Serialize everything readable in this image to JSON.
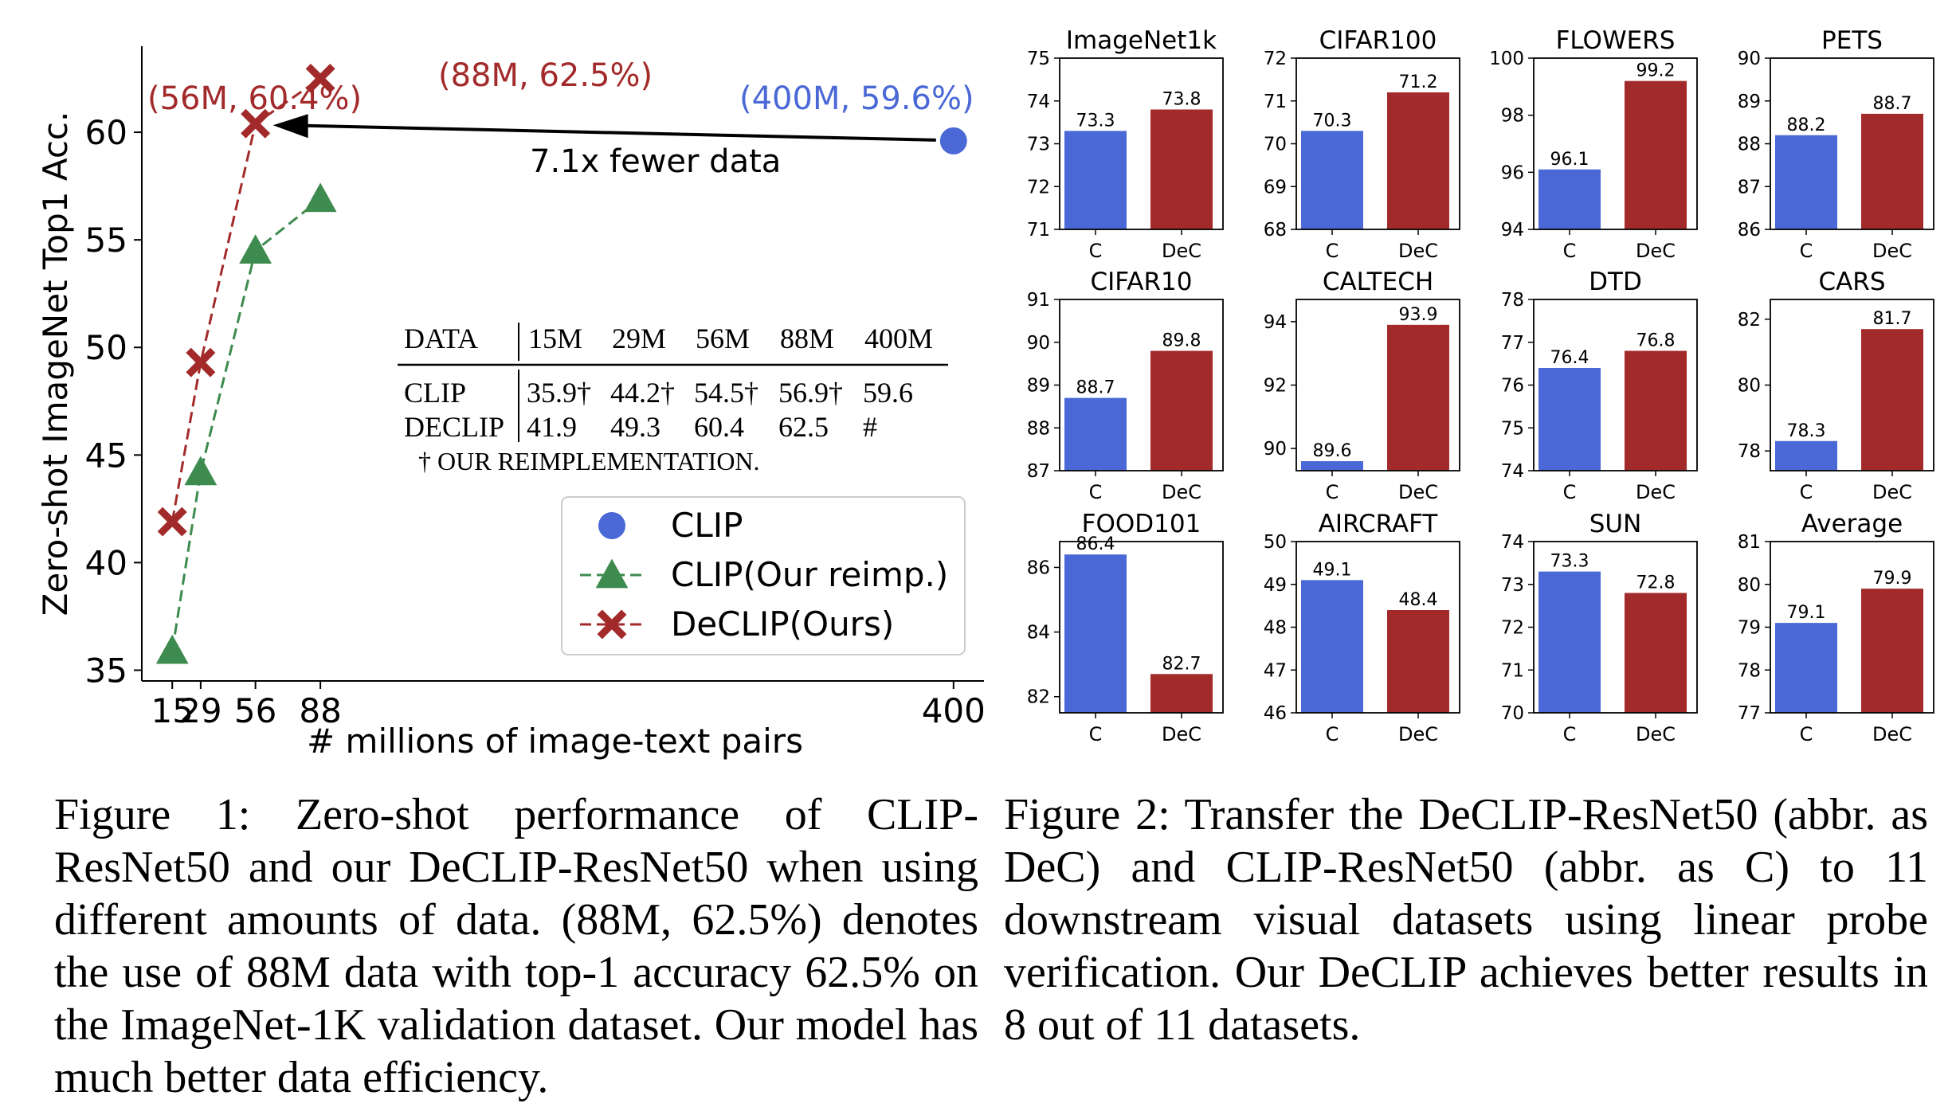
{
  "figure1": {
    "chart_data": {
      "type": "line",
      "ylabel": "Zero-shot ImageNet Top1 Acc.",
      "xlabel": "# millions of image-text pairs",
      "xlim": [
        0,
        415
      ],
      "ylim": [
        34.5,
        64
      ],
      "xticks": [
        15,
        29,
        56,
        88,
        400
      ],
      "yticks": [
        35,
        40,
        45,
        50,
        55,
        60
      ],
      "series": [
        {
          "name": "CLIP",
          "color": "#4a68d6",
          "marker": "circle",
          "line": false,
          "x": [
            400
          ],
          "y": [
            59.6
          ]
        },
        {
          "name": "CLIP(Our reimp.)",
          "color": "#3d8b4f",
          "marker": "triangle",
          "line": true,
          "x": [
            15,
            29,
            56,
            88
          ],
          "y": [
            35.9,
            44.2,
            54.5,
            56.9
          ]
        },
        {
          "name": "DeCLIP(Ours)",
          "color": "#a32a2a",
          "marker": "x",
          "line": true,
          "x": [
            15,
            29,
            56,
            88
          ],
          "y": [
            41.9,
            49.3,
            60.4,
            62.5
          ]
        }
      ],
      "legend_position": "lower-right",
      "annotations": [
        {
          "text": "(56M, 60.4%)",
          "color": "#a32a2a"
        },
        {
          "text": "(88M, 62.5%)",
          "color": "#a32a2a"
        },
        {
          "text": "(400M, 59.6%)",
          "color": "#4a68d6"
        },
        {
          "text": "7.1x fewer data",
          "color": "#000000"
        }
      ],
      "table": {
        "header": [
          "DATA",
          "15M",
          "29M",
          "56M",
          "88M",
          "400M"
        ],
        "rows": [
          [
            "CLIP",
            "35.9†",
            "44.2†",
            "54.5†",
            "56.9†",
            "59.6"
          ],
          [
            "DECLIP",
            "41.9",
            "49.3",
            "60.4",
            "62.5",
            "#"
          ]
        ],
        "footnote": "† OUR REIMPLEMENTATION."
      }
    }
  },
  "figure2": {
    "chart_data": [
      {
        "type": "bar",
        "title": "ImageNet1k",
        "categories": [
          "C",
          "DeC"
        ],
        "values": [
          73.3,
          73.8
        ],
        "ylim": [
          71,
          75
        ],
        "yticks": [
          71,
          72,
          73,
          74,
          75
        ]
      },
      {
        "type": "bar",
        "title": "CIFAR100",
        "categories": [
          "C",
          "DeC"
        ],
        "values": [
          70.3,
          71.2
        ],
        "ylim": [
          68,
          72
        ],
        "yticks": [
          68,
          69,
          70,
          71,
          72
        ]
      },
      {
        "type": "bar",
        "title": "FLOWERS",
        "categories": [
          "C",
          "DeC"
        ],
        "values": [
          96.1,
          99.2
        ],
        "ylim": [
          94,
          100
        ],
        "yticks": [
          94,
          96,
          98,
          100
        ]
      },
      {
        "type": "bar",
        "title": "PETS",
        "categories": [
          "C",
          "DeC"
        ],
        "values": [
          88.2,
          88.7
        ],
        "ylim": [
          86,
          90
        ],
        "yticks": [
          86,
          87,
          88,
          89,
          90
        ]
      },
      {
        "type": "bar",
        "title": "CIFAR10",
        "categories": [
          "C",
          "DeC"
        ],
        "values": [
          88.7,
          89.8
        ],
        "ylim": [
          87,
          91
        ],
        "yticks": [
          87,
          88,
          89,
          90,
          91
        ]
      },
      {
        "type": "bar",
        "title": "CALTECH",
        "categories": [
          "C",
          "DeC"
        ],
        "values": [
          89.6,
          93.9
        ],
        "ylim": [
          89.3,
          94.7
        ],
        "yticks": [
          90,
          92,
          94
        ]
      },
      {
        "type": "bar",
        "title": "DTD",
        "categories": [
          "C",
          "DeC"
        ],
        "values": [
          76.4,
          76.8
        ],
        "ylim": [
          74,
          78
        ],
        "yticks": [
          74,
          75,
          76,
          77,
          78
        ]
      },
      {
        "type": "bar",
        "title": "CARS",
        "categories": [
          "C",
          "DeC"
        ],
        "values": [
          78.3,
          81.7
        ],
        "ylim": [
          77.4,
          82.6
        ],
        "yticks": [
          78,
          80,
          82
        ]
      },
      {
        "type": "bar",
        "title": "FOOD101",
        "categories": [
          "C",
          "DeC"
        ],
        "values": [
          86.4,
          82.7
        ],
        "ylim": [
          81.5,
          86.8
        ],
        "yticks": [
          82,
          84,
          86
        ]
      },
      {
        "type": "bar",
        "title": "AIRCRAFT",
        "categories": [
          "C",
          "DeC"
        ],
        "values": [
          49.1,
          48.4
        ],
        "ylim": [
          46,
          50
        ],
        "yticks": [
          46,
          47,
          48,
          49,
          50
        ]
      },
      {
        "type": "bar",
        "title": "SUN",
        "categories": [
          "C",
          "DeC"
        ],
        "values": [
          73.3,
          72.8
        ],
        "ylim": [
          70,
          74
        ],
        "yticks": [
          70,
          71,
          72,
          73,
          74
        ]
      },
      {
        "type": "bar",
        "title": "Average",
        "categories": [
          "C",
          "DeC"
        ],
        "values": [
          79.1,
          79.9
        ],
        "ylim": [
          77,
          81
        ],
        "yticks": [
          77,
          78,
          79,
          80,
          81
        ]
      }
    ],
    "colors": {
      "C": "#4a68d6",
      "DeC": "#a32a2a"
    }
  },
  "captions": {
    "figure1": "Figure 1:  Zero-shot performance of CLIP-ResNet50 and our DeCLIP-ResNet50 when using different amounts of data. (88M, 62.5%) denotes the use of 88M data with top-1 accuracy 62.5% on the ImageNet-1K validation dataset. Our model has much better data efficiency.",
    "figure2": "Figure 2: Transfer the DeCLIP-ResNet50 (abbr. as DeC) and CLIP-ResNet50 (abbr. as C) to 11 downstream visual datasets using linear probe verification. Our DeCLIP achieves better results in 8 out of 11 datasets."
  }
}
